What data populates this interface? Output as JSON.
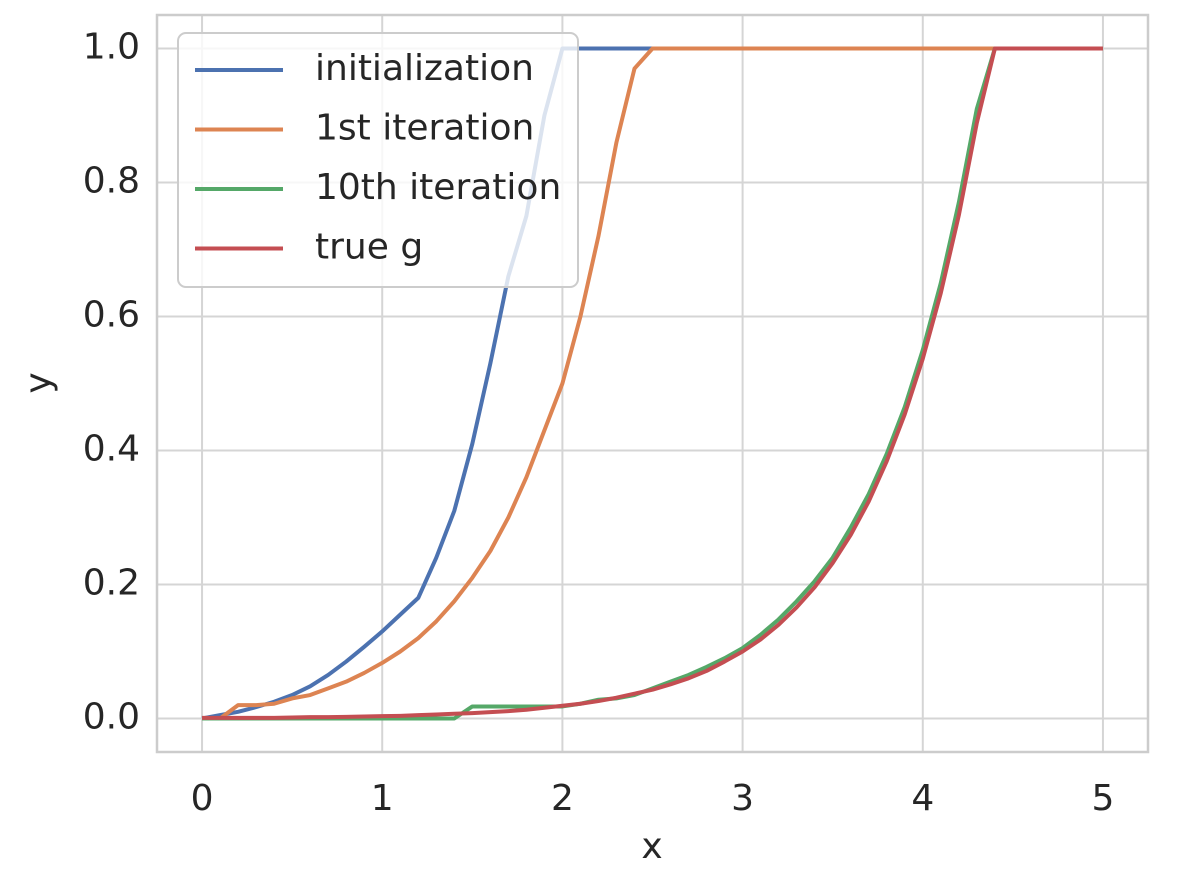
{
  "chart_data": {
    "type": "line",
    "x_label": "x",
    "y_label": "y",
    "x": [
      0,
      0.1,
      0.2,
      0.3,
      0.4,
      0.5,
      0.6,
      0.7,
      0.8,
      0.9,
      1,
      1.1,
      1.2,
      1.3,
      1.4,
      1.5,
      1.6,
      1.7,
      1.8,
      1.9,
      2,
      2.1,
      2.2,
      2.3,
      2.4,
      2.5,
      2.6,
      2.7,
      2.8,
      2.9,
      3,
      3.1,
      3.2,
      3.3,
      3.4,
      3.5,
      3.6,
      3.7,
      3.8,
      3.9,
      4,
      4.1,
      4.2,
      4.3,
      4.4,
      4.5,
      4.6,
      4.7,
      4.8,
      4.9,
      5
    ],
    "series": [
      {
        "name": "initialization",
        "color": "#4c72b0",
        "values": [
          0,
          0.005,
          0.01,
          0.017,
          0.025,
          0.035,
          0.048,
          0.065,
          0.085,
          0.107,
          0.13,
          0.155,
          0.18,
          0.24,
          0.31,
          0.41,
          0.53,
          0.66,
          0.75,
          0.9,
          1,
          1,
          1,
          1,
          1,
          1,
          1,
          1,
          1,
          1,
          1,
          1,
          1,
          1,
          1,
          1,
          1,
          1,
          1,
          1,
          1,
          1,
          1,
          1,
          1,
          1,
          1,
          1,
          1,
          1,
          1
        ]
      },
      {
        "name": "1st iteration",
        "color": "#dd8452",
        "values": [
          0,
          0,
          0.02,
          0.02,
          0.022,
          0.03,
          0.035,
          0.045,
          0.055,
          0.068,
          0.083,
          0.1,
          0.12,
          0.145,
          0.175,
          0.21,
          0.25,
          0.3,
          0.36,
          0.43,
          0.5,
          0.6,
          0.72,
          0.86,
          0.97,
          1,
          1,
          1,
          1,
          1,
          1,
          1,
          1,
          1,
          1,
          1,
          1,
          1,
          1,
          1,
          1,
          1,
          1,
          1,
          1,
          1,
          1,
          1,
          1,
          1,
          1
        ]
      },
      {
        "name": "10th iteration",
        "color": "#55a868",
        "values": [
          0,
          0,
          0,
          0,
          0,
          0,
          0,
          0,
          0,
          0,
          0,
          0,
          0,
          0,
          0,
          0.018,
          0.018,
          0.018,
          0.018,
          0.018,
          0.018,
          0.022,
          0.028,
          0.03,
          0.035,
          0.045,
          0.055,
          0.065,
          0.077,
          0.09,
          0.105,
          0.125,
          0.148,
          0.175,
          0.205,
          0.24,
          0.285,
          0.335,
          0.395,
          0.465,
          0.55,
          0.65,
          0.77,
          0.91,
          1,
          1,
          1,
          1,
          1,
          1,
          1
        ]
      },
      {
        "name": "true g",
        "color": "#c44e52",
        "values": [
          0.001,
          0.001,
          0.001,
          0.001,
          0.001,
          0.0015,
          0.002,
          0.002,
          0.0025,
          0.003,
          0.0035,
          0.004,
          0.005,
          0.006,
          0.007,
          0.008,
          0.0095,
          0.011,
          0.013,
          0.016,
          0.019,
          0.022,
          0.026,
          0.031,
          0.037,
          0.043,
          0.051,
          0.06,
          0.071,
          0.085,
          0.1,
          0.118,
          0.14,
          0.166,
          0.196,
          0.232,
          0.274,
          0.324,
          0.384,
          0.454,
          0.537,
          0.635,
          0.751,
          0.889,
          1,
          1,
          1,
          1,
          1,
          1,
          1
        ]
      }
    ],
    "xlim": [
      -0.25,
      5.25
    ],
    "ylim": [
      -0.05,
      1.05
    ],
    "xticks": [
      0,
      1,
      2,
      3,
      4,
      5
    ],
    "yticks": [
      {
        "value": 0,
        "label": "0.0"
      },
      {
        "value": 0.2,
        "label": "0.2"
      },
      {
        "value": 0.4,
        "label": "0.4"
      },
      {
        "value": 0.6,
        "label": "0.6"
      },
      {
        "value": 0.8,
        "label": "0.8"
      },
      {
        "value": 1,
        "label": "1.0"
      }
    ],
    "grid": true,
    "legend": "upper left"
  }
}
